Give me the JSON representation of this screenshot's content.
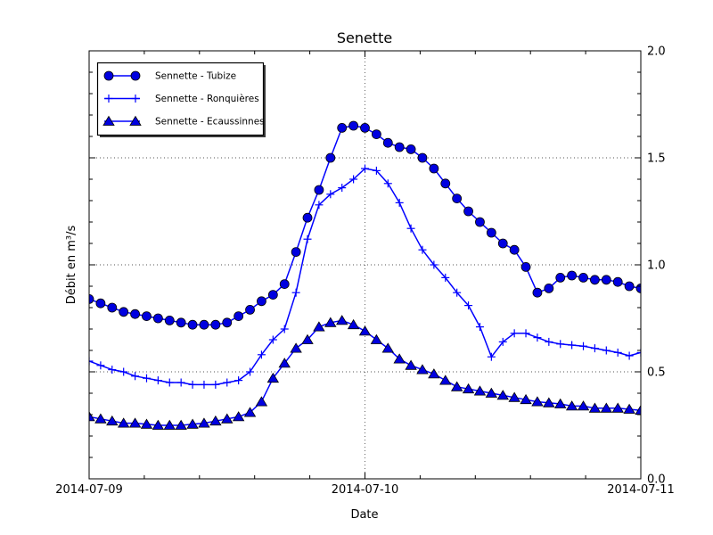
{
  "figure": {
    "background": "#ffffff"
  },
  "chart_data": {
    "type": "line",
    "title": "Senette",
    "xlabel": "Date",
    "ylabel": "Débit en m³/s",
    "ylim": [
      0.0,
      2.0
    ],
    "ytick_values": [
      0.0,
      0.5,
      1.0,
      1.5,
      2.0
    ],
    "ytick_labels": [
      "0.0",
      "0.5",
      "1.0",
      "1.5",
      "2.0"
    ],
    "ytick_side": "right",
    "y_minor_step": 0.1,
    "xtick_hours": [
      0,
      24,
      48
    ],
    "xtick_labels": [
      "2014-07-09",
      "2014-07-10",
      "2014-07-11"
    ],
    "x_minor_step_hours": 4.8,
    "x_range_hours": [
      0,
      48
    ],
    "x_unit": "hours since 2014-07-09 00:00 (one point per hour)",
    "grid": {
      "horizontal_at": [
        0.5,
        1.0,
        1.5
      ],
      "vertical_at_hours": [
        24
      ],
      "style": "dotted"
    },
    "legend_position": "upper left",
    "colors": {
      "line": "#0000ff",
      "marker_fill": "#0000e0",
      "marker_edge": "#000000",
      "grid": "#555555",
      "frame": "#000000"
    },
    "series": [
      {
        "name": "Sennette - Tubize",
        "marker": "circle",
        "values": [
          0.84,
          0.82,
          0.8,
          0.78,
          0.77,
          0.76,
          0.75,
          0.74,
          0.73,
          0.72,
          0.72,
          0.72,
          0.73,
          0.76,
          0.79,
          0.83,
          0.86,
          0.91,
          1.06,
          1.22,
          1.35,
          1.5,
          1.64,
          1.65,
          1.64,
          1.61,
          1.57,
          1.55,
          1.54,
          1.5,
          1.45,
          1.38,
          1.31,
          1.25,
          1.2,
          1.15,
          1.1,
          1.07,
          0.99,
          0.87,
          0.89,
          0.94,
          0.95,
          0.94,
          0.93,
          0.93,
          0.92,
          0.9,
          0.89
        ]
      },
      {
        "name": "Sennette - Ronquières",
        "marker": "plus",
        "values": [
          0.55,
          0.53,
          0.51,
          0.5,
          0.48,
          0.47,
          0.46,
          0.45,
          0.45,
          0.44,
          0.44,
          0.44,
          0.45,
          0.46,
          0.5,
          0.58,
          0.65,
          0.7,
          0.87,
          1.12,
          1.28,
          1.33,
          1.36,
          1.4,
          1.45,
          1.44,
          1.38,
          1.29,
          1.17,
          1.07,
          1.0,
          0.94,
          0.87,
          0.81,
          0.71,
          0.57,
          0.64,
          0.68,
          0.68,
          0.66,
          0.64,
          0.63,
          0.625,
          0.62,
          0.61,
          0.6,
          0.59,
          0.575,
          0.59
        ]
      },
      {
        "name": "Sennette - Ecaussinnes",
        "marker": "triangle-up",
        "values": [
          0.29,
          0.28,
          0.27,
          0.26,
          0.26,
          0.255,
          0.25,
          0.25,
          0.25,
          0.255,
          0.26,
          0.27,
          0.28,
          0.29,
          0.31,
          0.36,
          0.47,
          0.54,
          0.61,
          0.65,
          0.71,
          0.73,
          0.74,
          0.72,
          0.69,
          0.65,
          0.61,
          0.56,
          0.53,
          0.51,
          0.49,
          0.46,
          0.43,
          0.42,
          0.41,
          0.4,
          0.39,
          0.38,
          0.37,
          0.36,
          0.355,
          0.35,
          0.34,
          0.34,
          0.33,
          0.33,
          0.33,
          0.325,
          0.32
        ]
      }
    ]
  }
}
